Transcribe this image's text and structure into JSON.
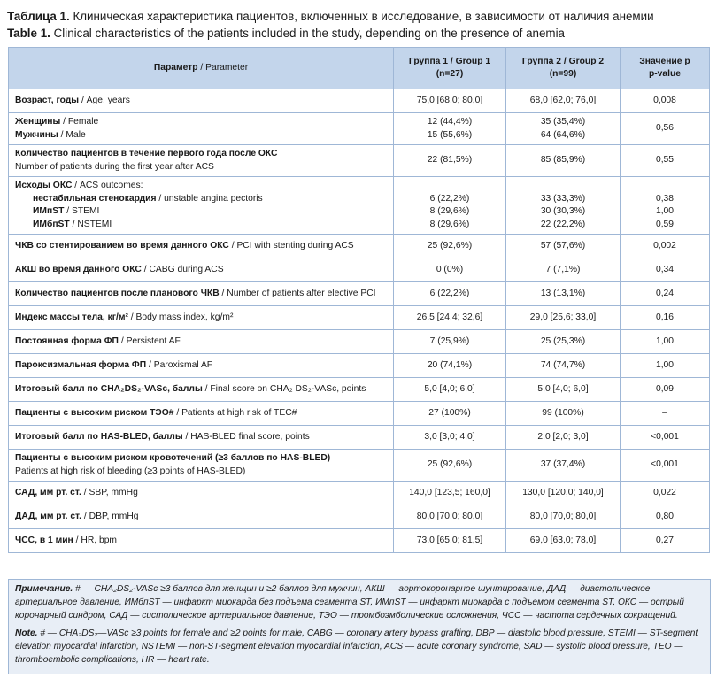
{
  "title": {
    "ru_label": "Таблица 1.",
    "ru_text": "Клиническая характеристика пациентов, включенных в исследование, в зависимости от наличия анемии",
    "en_label": "Table 1.",
    "en_text": "Clinical characteristics of the patients included in the study, depending on the presence of anemia"
  },
  "table": {
    "header": [
      [
        {
          "ru": "Параметр",
          "en": "/ Parameter"
        }
      ],
      [
        {
          "ru": "Группа 1",
          "en": "/ Group 1"
        },
        {
          "ru": "(n=27)"
        }
      ],
      [
        {
          "ru": "Группа 2",
          "en": "/ Group 2"
        },
        {
          "ru": "(n=99)"
        }
      ],
      [
        {
          "ru": "Значение р"
        },
        {
          "en": "p-value"
        }
      ]
    ],
    "rows": [
      {
        "param": [
          {
            "ru": "Возраст, годы",
            "en": "/ Age, years"
          }
        ],
        "g1": "75,0 [68,0; 80,0]",
        "g2": "68,0 [62,0; 76,0]",
        "p": "0,008"
      },
      {
        "param": [
          {
            "ru": "Женщины",
            "en": "/ Female"
          },
          {
            "ru": "Мужчины",
            "en": "/ Male"
          }
        ],
        "g1": [
          "12 (44,4%)",
          "15 (55,6%)"
        ],
        "g2": [
          "35 (35,4%)",
          "64 (64,6%)"
        ],
        "p": "0,56"
      },
      {
        "param": [
          {
            "ru": "Количество пациентов в течение первого года после ОКС"
          },
          {
            "en": "Number of patients during the first year after ACS"
          }
        ],
        "g1": "22 (81,5%)",
        "g2": "85 (85,9%)",
        "p": "0,55"
      },
      {
        "param": [
          {
            "ru": "Исходы ОКС",
            "en": "/ ACS outcomes:"
          },
          {
            "ru": "нестабильная стенокардия",
            "en": "/ unstable angina pectoris",
            "indent": true
          },
          {
            "ru": "ИМпST",
            "en": "/ STEMI",
            "indent": true
          },
          {
            "ru": "ИМбпST",
            "en": "/ NSTEMI",
            "indent": true
          }
        ],
        "g1": [
          null,
          "6 (22,2%)",
          "8 (29,6%)",
          "8 (29,6%)"
        ],
        "g2": [
          null,
          "33 (33,3%)",
          "30 (30,3%)",
          "22 (22,2%)"
        ],
        "p": [
          null,
          "0,38",
          "1,00",
          "0,59"
        ]
      },
      {
        "param": [
          {
            "ru": "ЧКВ со стентированием во время данного ОКС",
            "en": "/ PCI with stenting during ACS"
          }
        ],
        "g1": "25 (92,6%)",
        "g2": "57 (57,6%)",
        "p": "0,002"
      },
      {
        "param": [
          {
            "ru": "АКШ во время данного ОКС",
            "en": "/ CABG during ACS"
          }
        ],
        "g1": "0 (0%)",
        "g2": "7 (7,1%)",
        "p": "0,34"
      },
      {
        "param": [
          {
            "ru": "Количество пациентов после планового ЧКВ",
            "en": "/ Number of patients after elective PCI"
          }
        ],
        "g1": "6 (22,2%)",
        "g2": "13 (13,1%)",
        "p": "0,24"
      },
      {
        "param": [
          {
            "ru": "Индекс массы тела, кг/м²",
            "en": "/ Body mass index, kg/m²"
          }
        ],
        "g1": "26,5 [24,4; 32,6]",
        "g2": "29,0 [25,6; 33,0]",
        "p": "0,16"
      },
      {
        "param": [
          {
            "ru": "Постоянная форма ФП",
            "en": "/ Persistent AF"
          }
        ],
        "g1": "7 (25,9%)",
        "g2": "25 (25,3%)",
        "p": "1,00"
      },
      {
        "param": [
          {
            "ru": "Пароксизмальная форма ФП",
            "en": "/ Paroxismal AF"
          }
        ],
        "g1": "20 (74,1%)",
        "g2": "74 (74,7%)",
        "p": "1,00"
      },
      {
        "param": [
          {
            "ru": "Итоговый балл по CHA₂DS₂-VASc, баллы",
            "en": "/ Final score on CHA₂ DS₂-VASc, points"
          }
        ],
        "g1": "5,0 [4,0; 6,0]",
        "g2": "5,0 [4,0; 6,0]",
        "p": "0,09"
      },
      {
        "param": [
          {
            "ru": "Пациенты с высоким риском ТЭО#",
            "en": "/ Patients at high risk of TEC#"
          }
        ],
        "g1": "27 (100%)",
        "g2": "99 (100%)",
        "p": "–"
      },
      {
        "param": [
          {
            "ru": "Итоговый балл по HAS-BLED, баллы",
            "en": "/ HAS-BLED final score, points"
          }
        ],
        "g1": "3,0 [3,0; 4,0]",
        "g2": "2,0 [2,0; 3,0]",
        "p": "<0,001"
      },
      {
        "param": [
          {
            "ru": "Пациенты с высоким риском кровотечений (≥3 баллов по HAS-BLED)"
          },
          {
            "en": "Patients at high risk of bleeding (≥3 points of HAS-BLED)"
          }
        ],
        "g1": "25 (92,6%)",
        "g2": "37 (37,4%)",
        "p": "<0,001"
      },
      {
        "param": [
          {
            "ru": "САД, мм рт. ст.",
            "en": "/ SBP, mmHg"
          }
        ],
        "g1": "140,0 [123,5; 160,0]",
        "g2": "130,0 [120,0; 140,0]",
        "p": "0,022"
      },
      {
        "param": [
          {
            "ru": "ДАД, мм рт. ст.",
            "en": "/ DBP, mmHg"
          }
        ],
        "g1": "80,0 [70,0; 80,0]",
        "g2": "80,0 [70,0; 80,0]",
        "p": "0,80"
      },
      {
        "param": [
          {
            "ru": "ЧСС, в 1 мин",
            "en": "/ HR, bpm"
          }
        ],
        "g1": "73,0 [65,0; 81,5]",
        "g2": "69,0 [63,0; 78,0]",
        "p": "0,27"
      }
    ]
  },
  "notes": [
    {
      "label": "Примечание.",
      "text": "# — CHA₂DS₂-VASc ≥3 баллов для женщин и ≥2 баллов для мужчин, АКШ — аортокоронарное шунтирование, ДАД — диастолическое артериальное давление, ИМбпST — инфаркт миокарда без подъема сегмента ST, ИМпST — инфаркт миокарда с подъемом сегмента ST, ОКС — острый коронарный синдром, САД — систолическое артериальное давление, ТЭО — тромбоэмболические осложнения, ЧСС — частота сердечных сокращений."
    },
    {
      "label": "Note.",
      "text": "# — CHA₂DS₂—VASc ≥3 points for female and ≥2 points for male, CABG — coronary artery bypass grafting, DBP — diastolic blood pressure, STEMI — ST-segment elevation myocardial infarction, NSTEMI — non-ST-segment elevation myocardial infarction, ACS — acute coronary syndrome, SAD — systolic blood pressure, TEO — thromboembolic complications, HR — heart rate."
    }
  ]
}
